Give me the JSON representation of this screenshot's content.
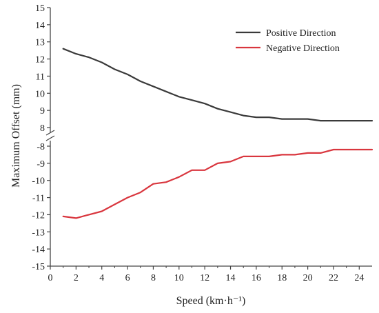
{
  "chart_data": {
    "type": "line",
    "xlabel": "Speed (km·h⁻¹)",
    "ylabel": "Maximum Offset (mm)",
    "xlim": [
      0,
      25
    ],
    "x_ticks": [
      "0",
      "2",
      "4",
      "6",
      "8",
      "10",
      "12",
      "14",
      "16",
      "18",
      "20",
      "22",
      "24"
    ],
    "broken_y_axis": true,
    "y_upper_range": [
      8,
      15
    ],
    "y_lower_range": [
      -15,
      -8
    ],
    "y_ticks_upper": [
      "15",
      "14",
      "13",
      "12",
      "11",
      "10",
      "9",
      "8"
    ],
    "y_ticks_lower": [
      "-8",
      "-9",
      "-10",
      "-11",
      "-12",
      "-13",
      "-14",
      "-15"
    ],
    "grid": false,
    "legend_position": "top-right",
    "series": [
      {
        "name": "Positive Direction",
        "color": "#3a3a3a",
        "x": [
          1,
          2,
          3,
          4,
          5,
          6,
          7,
          8,
          9,
          10,
          11,
          12,
          13,
          14,
          15,
          16,
          17,
          18,
          19,
          20,
          21,
          22,
          23,
          24,
          25
        ],
        "values": [
          12.6,
          12.3,
          12.1,
          11.8,
          11.4,
          11.1,
          10.7,
          10.4,
          10.1,
          9.8,
          9.6,
          9.4,
          9.1,
          8.9,
          8.7,
          8.6,
          8.6,
          8.5,
          8.5,
          8.5,
          8.4,
          8.4,
          8.4,
          8.4,
          8.4
        ]
      },
      {
        "name": "Negative Direction",
        "color": "#d9363e",
        "x": [
          1,
          2,
          3,
          4,
          5,
          6,
          7,
          8,
          9,
          10,
          11,
          12,
          13,
          14,
          15,
          16,
          17,
          18,
          19,
          20,
          21,
          22,
          23,
          24,
          25
        ],
        "values": [
          -12.1,
          -12.2,
          -12.0,
          -11.8,
          -11.4,
          -11.0,
          -10.7,
          -10.2,
          -10.1,
          -9.8,
          -9.4,
          -9.4,
          -9.0,
          -8.9,
          -8.6,
          -8.6,
          -8.6,
          -8.5,
          -8.5,
          -8.4,
          -8.4,
          -8.2,
          -8.2,
          -8.2,
          -8.2
        ]
      }
    ]
  }
}
